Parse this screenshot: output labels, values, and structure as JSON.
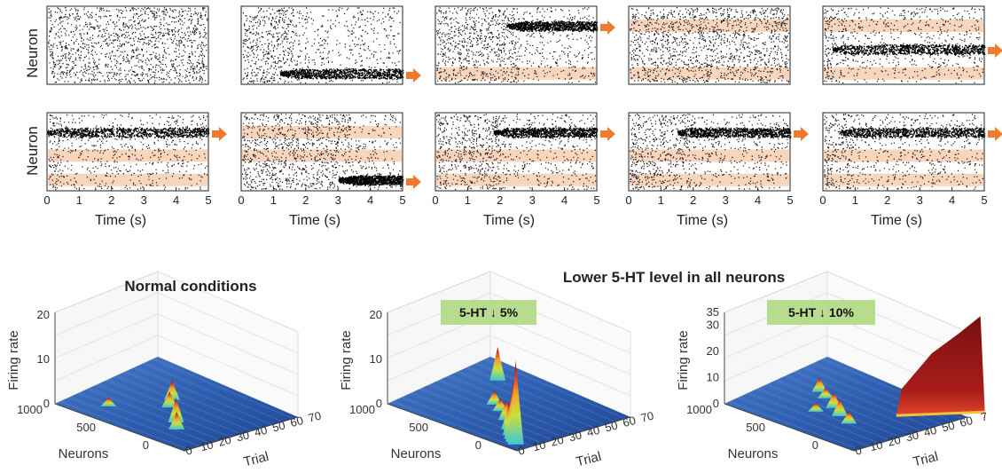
{
  "raster": {
    "y_label": "Neuron",
    "x_label": "Time (s)",
    "x_ticks": [
      "0",
      "1",
      "2",
      "3",
      "4",
      "5"
    ],
    "panels": [
      {
        "id": "r1c1",
        "bands": [],
        "clusters": [],
        "arrow": "none"
      },
      {
        "id": "r1c2",
        "bands": [],
        "clusters": [
          {
            "neuron": 0.86,
            "t_start": 1.2,
            "t_end": 5
          }
        ],
        "arrow": "bottom"
      },
      {
        "id": "r1c3",
        "bands": [
          0.86
        ],
        "clusters": [
          {
            "neuron": 0.25,
            "t_start": 2.2,
            "t_end": 5
          }
        ],
        "arrow": "top"
      },
      {
        "id": "r1c4",
        "bands": [
          0.25,
          0.86
        ],
        "clusters": [],
        "arrow": "none"
      },
      {
        "id": "r1c5",
        "bands": [
          0.25,
          0.86
        ],
        "clusters": [
          {
            "neuron": 0.55,
            "t_start": 0.3,
            "t_end": 5
          }
        ],
        "arrow": "middle"
      },
      {
        "id": "r2c1",
        "bands": [
          0.55,
          0.86
        ],
        "clusters": [
          {
            "neuron": 0.25,
            "t_start": 0,
            "t_end": 5
          }
        ],
        "arrow": "top"
      },
      {
        "id": "r2c2",
        "bands": [
          0.25,
          0.55
        ],
        "clusters": [
          {
            "neuron": 0.86,
            "t_start": 3,
            "t_end": 5
          }
        ],
        "arrow": "bottom"
      },
      {
        "id": "r2c3",
        "bands": [
          0.55,
          0.86
        ],
        "clusters": [
          {
            "neuron": 0.25,
            "t_start": 1.8,
            "t_end": 5
          }
        ],
        "arrow": "top"
      },
      {
        "id": "r2c4",
        "bands": [
          0.55,
          0.86
        ],
        "clusters": [
          {
            "neuron": 0.25,
            "t_start": 1.5,
            "t_end": 5
          }
        ],
        "arrow": "top"
      },
      {
        "id": "r2c5",
        "bands": [
          0.55,
          0.86
        ],
        "clusters": [
          {
            "neuron": 0.25,
            "t_start": 0.5,
            "t_end": 5
          }
        ],
        "arrow": "top"
      }
    ]
  },
  "bottom": {
    "group_title": "Lower 5-HT level in all neurons",
    "z_label": "Firing rate",
    "x_label": "Neurons",
    "y_label": "Trial",
    "neuron_ticks": [
      "1000",
      "500",
      "0"
    ],
    "plots": [
      {
        "id": "normal",
        "title": "Normal conditions",
        "badge": "",
        "z_ticks": [
          "20",
          "10",
          "0"
        ],
        "trial_ticks": [
          "0",
          "10",
          "20",
          "30",
          "40",
          "50",
          "60",
          "70"
        ]
      },
      {
        "id": "low5",
        "title": "",
        "badge": "5-HT ↓ 5%",
        "z_ticks": [
          "20",
          "10",
          "0"
        ],
        "trial_ticks": [
          "0",
          "10",
          "20",
          "30",
          "40",
          "50",
          "60",
          "70"
        ]
      },
      {
        "id": "low10",
        "title": "",
        "badge": "5-HT ↓ 10%",
        "z_ticks": [
          "35",
          "30",
          "20",
          "10",
          "0"
        ],
        "trial_ticks": [
          "0",
          "10",
          "20",
          "30",
          "40",
          "50",
          "60",
          "7"
        ]
      }
    ]
  },
  "colors": {
    "arrow": "#ee7a2e",
    "band": "#f8d5bd",
    "badge": "#b8dc8e",
    "surface": "#2c5aa6",
    "peak_top": "#8b1212"
  }
}
